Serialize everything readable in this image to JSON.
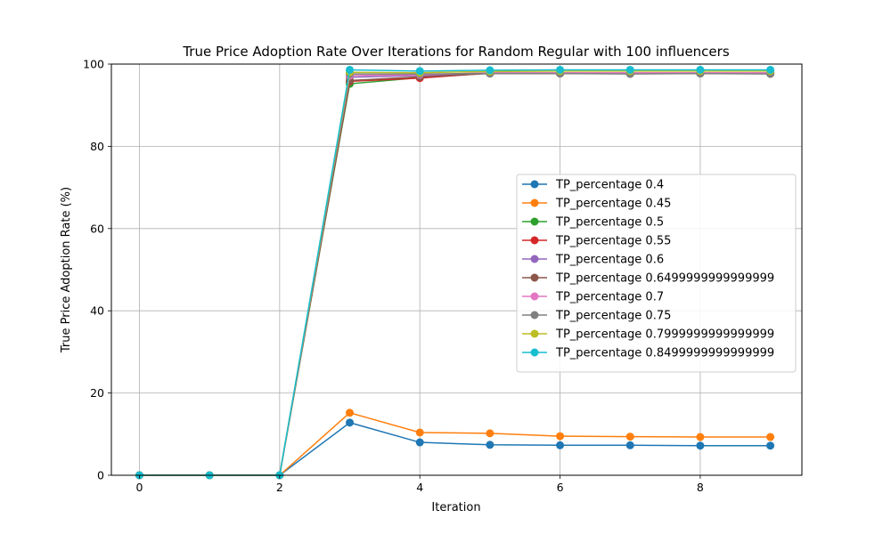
{
  "chart_data": {
    "type": "line",
    "title": "True Price Adoption Rate Over Iterations for Random Regular with 100 influencers",
    "xlabel": "Iteration",
    "ylabel": "True Price Adoption Rate (%)",
    "xlim": [
      -0.4,
      9.45
    ],
    "ylim": [
      0,
      100
    ],
    "xticks": [
      0,
      2,
      4,
      6,
      8
    ],
    "yticks": [
      0,
      20,
      40,
      60,
      80,
      100
    ],
    "grid": true,
    "legend_position": "center-right",
    "x": [
      0,
      1,
      2,
      3,
      4,
      5,
      6,
      7,
      8,
      9
    ],
    "series": [
      {
        "name": "TP_percentage 0.4",
        "color": "#1f77b4",
        "values": [
          0,
          0,
          0,
          12.8,
          8.0,
          7.4,
          7.3,
          7.3,
          7.2,
          7.2
        ]
      },
      {
        "name": "TP_percentage 0.45",
        "color": "#ff7f0e",
        "values": [
          0,
          0,
          0,
          15.2,
          10.4,
          10.2,
          9.5,
          9.4,
          9.3,
          9.3
        ]
      },
      {
        "name": "TP_percentage 0.5",
        "color": "#2ca02c",
        "values": [
          0,
          0,
          0,
          95.2,
          96.7,
          97.9,
          97.9,
          97.9,
          97.9,
          97.9
        ]
      },
      {
        "name": "TP_percentage 0.55",
        "color": "#d62728",
        "values": [
          0,
          0,
          0,
          95.8,
          96.6,
          97.8,
          97.8,
          97.8,
          97.8,
          97.8
        ]
      },
      {
        "name": "TP_percentage 0.6",
        "color": "#9467bd",
        "values": [
          0,
          0,
          0,
          96.8,
          97.2,
          97.8,
          97.8,
          97.8,
          97.8,
          97.8
        ]
      },
      {
        "name": "TP_percentage 0.6499999999999999",
        "color": "#8c564b",
        "values": [
          0,
          0,
          0,
          96.0,
          96.9,
          97.7,
          97.7,
          97.7,
          97.7,
          97.7
        ]
      },
      {
        "name": "TP_percentage 0.7",
        "color": "#e377c2",
        "values": [
          0,
          0,
          0,
          97.2,
          97.4,
          97.9,
          97.9,
          97.9,
          97.9,
          97.9
        ]
      },
      {
        "name": "TP_percentage 0.75",
        "color": "#7f7f7f",
        "values": [
          0,
          0,
          0,
          97.6,
          97.6,
          97.7,
          97.7,
          97.6,
          97.7,
          97.6
        ]
      },
      {
        "name": "TP_percentage 0.7999999999999999",
        "color": "#bcbd22",
        "values": [
          0,
          0,
          0,
          98.0,
          97.9,
          98.2,
          98.3,
          98.3,
          98.3,
          98.3
        ]
      },
      {
        "name": "TP_percentage 0.8499999999999999",
        "color": "#17becf",
        "values": [
          0,
          0,
          0,
          98.6,
          98.3,
          98.5,
          98.6,
          98.6,
          98.6,
          98.6
        ]
      }
    ]
  }
}
